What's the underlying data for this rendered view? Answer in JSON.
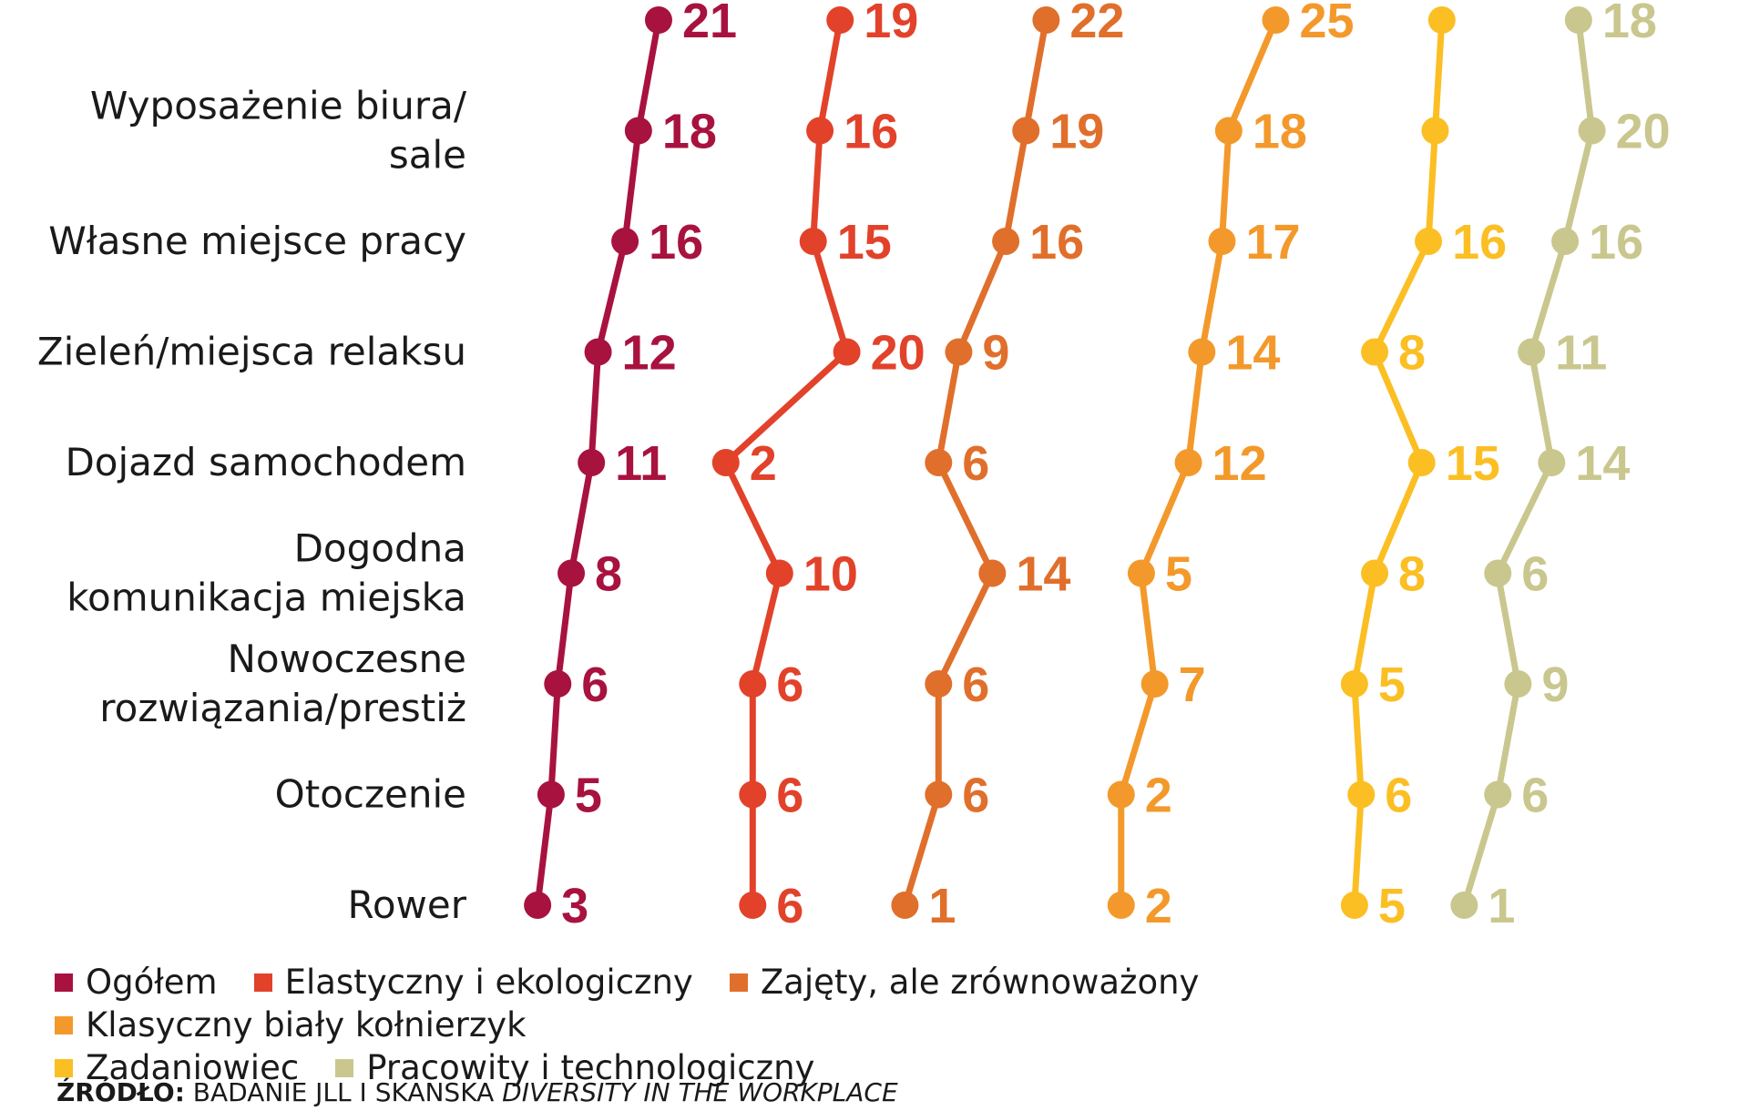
{
  "chart_data": {
    "type": "line",
    "categories": [
      [
        "",
        ""
      ],
      [
        "Wyposażenie biura/",
        "sale"
      ],
      [
        "Własne miejsce pracy"
      ],
      [
        "Zieleń/miejsca relaksu"
      ],
      [
        "Dojazd samochodem"
      ],
      [
        "Dogodna",
        "komunikacja miejska"
      ],
      [
        "Nowoczesne",
        "rozwiązania/prestiż"
      ],
      [
        "Otoczenie"
      ],
      [
        "Rower"
      ]
    ],
    "x_range": [
      0,
      25
    ],
    "series": [
      {
        "name": "Ogółem",
        "color": "#a8123f",
        "values": [
          21,
          18,
          16,
          12,
          11,
          8,
          6,
          5,
          3
        ],
        "labels": [
          "21",
          "18",
          "16",
          "12",
          "11",
          "8",
          "6",
          "5",
          "3"
        ]
      },
      {
        "name": "Elastyczny i ekologiczny",
        "color": "#e2422a",
        "values": [
          19,
          16,
          15,
          20,
          2,
          10,
          6,
          6,
          6
        ],
        "labels": [
          "19",
          "16",
          "15",
          "20",
          "2",
          "10",
          "6",
          "6",
          "6"
        ]
      },
      {
        "name": "Zajęty, ale zrównoważony",
        "color": "#e06f2c",
        "values": [
          22,
          19,
          16,
          9,
          6,
          14,
          6,
          6,
          1
        ],
        "labels": [
          "22",
          "19",
          "16",
          "9",
          "6",
          "14",
          "6",
          "6",
          "1"
        ]
      },
      {
        "name": "Klasyczny biały kołnierzyk",
        "color": "#f3992b",
        "values": [
          25,
          18,
          17,
          14,
          12,
          5,
          7,
          2,
          2
        ],
        "labels": [
          "25",
          "18",
          "17",
          "14",
          "12",
          "5",
          "7",
          "2",
          "2"
        ]
      },
      {
        "name": "Zadaniowiec",
        "color": "#fbbf24",
        "values": [
          18,
          17,
          16,
          8,
          15,
          8,
          5,
          6,
          5
        ],
        "labels": [
          "",
          "",
          "16",
          "8",
          "15",
          "8",
          "5",
          "6",
          "5"
        ]
      },
      {
        "name": "Pracowity i technologiczny",
        "color": "#c9c78e",
        "values": [
          18,
          20,
          16,
          11,
          14,
          6,
          9,
          6,
          1
        ],
        "labels": [
          "18",
          "20",
          "16",
          "11",
          "14",
          "6",
          "9",
          "6",
          "1"
        ]
      }
    ]
  },
  "source": {
    "prefix": "ŹRÓDŁO:",
    "text": " BADANIE JLL I SKANSKA ",
    "italic": "DIVERSITY IN THE WORKPLACE"
  }
}
